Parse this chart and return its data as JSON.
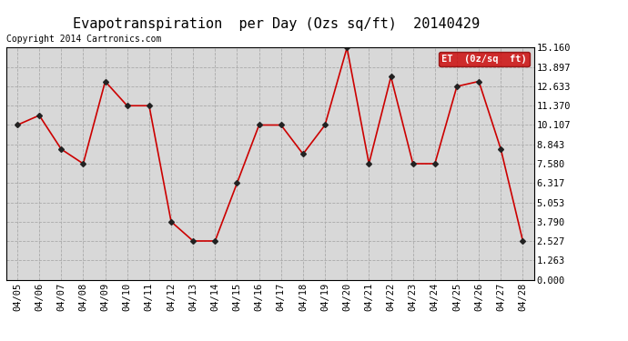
{
  "title": "Evapotranspiration  per Day (Ozs sq/ft)  20140429",
  "copyright": "Copyright 2014 Cartronics.com",
  "legend_label": "ET  (0z/sq  ft)",
  "x_labels": [
    "04/05",
    "04/06",
    "04/07",
    "04/08",
    "04/09",
    "04/10",
    "04/11",
    "04/12",
    "04/13",
    "04/14",
    "04/15",
    "04/16",
    "04/17",
    "04/18",
    "04/19",
    "04/20",
    "04/21",
    "04/22",
    "04/23",
    "04/24",
    "04/25",
    "04/26",
    "04/27",
    "04/28"
  ],
  "y_values": [
    10.107,
    10.738,
    8.528,
    7.58,
    12.96,
    11.37,
    11.37,
    3.79,
    2.527,
    2.527,
    6.317,
    10.107,
    10.107,
    8.212,
    10.107,
    15.16,
    7.58,
    13.265,
    7.58,
    7.58,
    12.633,
    12.96,
    8.528,
    2.527
  ],
  "yticks": [
    0.0,
    1.263,
    2.527,
    3.79,
    5.053,
    6.317,
    7.58,
    8.843,
    10.107,
    11.37,
    12.633,
    13.897,
    15.16
  ],
  "ylim": [
    0.0,
    15.16
  ],
  "line_color": "#cc0000",
  "marker": "D",
  "marker_size": 3,
  "marker_color": "#222222",
  "grid_color": "#aaaaaa",
  "bg_color": "#ffffff",
  "plot_bg_color": "#d8d8d8",
  "title_fontsize": 11,
  "copyright_fontsize": 7,
  "tick_fontsize": 7.5,
  "legend_bg": "#cc0000",
  "legend_text_color": "#ffffff"
}
